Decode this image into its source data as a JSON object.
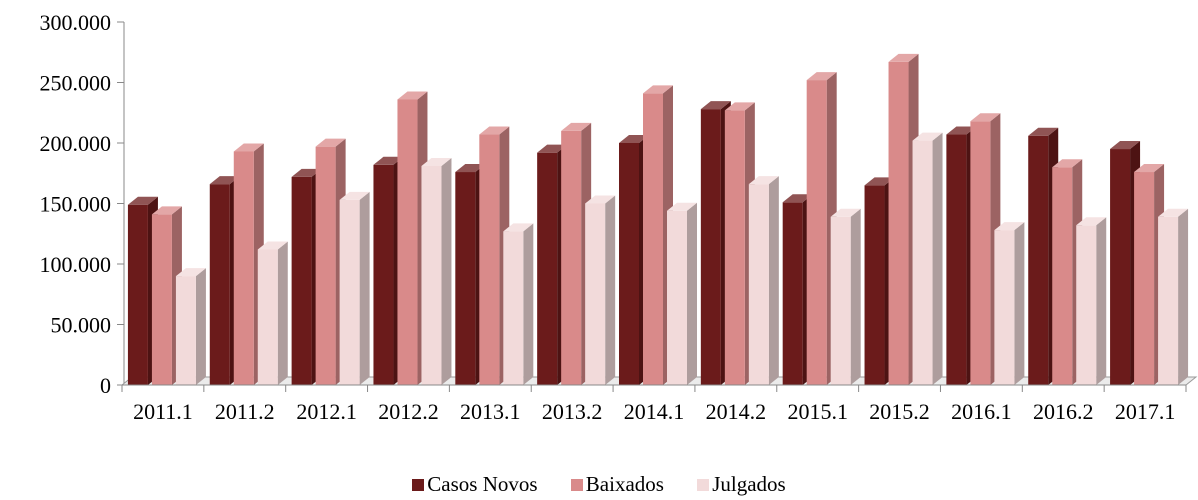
{
  "chart_data": {
    "type": "bar",
    "categories": [
      "2011.1",
      "2011.2",
      "2012.1",
      "2012.2",
      "2013.1",
      "2013.2",
      "2014.1",
      "2014.2",
      "2015.1",
      "2015.2",
      "2016.1",
      "2016.2",
      "2017.1"
    ],
    "series": [
      {
        "name": "Casos Novos",
        "color": "#6b1b1b",
        "values": [
          149000,
          166000,
          172000,
          182000,
          176000,
          192000,
          200000,
          228000,
          151000,
          165000,
          207000,
          206000,
          195000
        ]
      },
      {
        "name": "Baixados",
        "color": "#d98a8a",
        "values": [
          141000,
          193000,
          197000,
          236000,
          207000,
          210000,
          241000,
          227000,
          252000,
          267000,
          218000,
          180000,
          176000
        ]
      },
      {
        "name": "Julgados",
        "color": "#f2dada",
        "values": [
          90000,
          112000,
          153000,
          181000,
          127000,
          150000,
          144000,
          166000,
          139000,
          202000,
          128000,
          132000,
          139000
        ]
      }
    ],
    "y_ticks": [
      "0",
      "50.000",
      "100.000",
      "150.000",
      "200.000",
      "250.000",
      "300.000"
    ],
    "ylim": [
      0,
      300000
    ],
    "grid": false,
    "legend_position": "bottom"
  }
}
